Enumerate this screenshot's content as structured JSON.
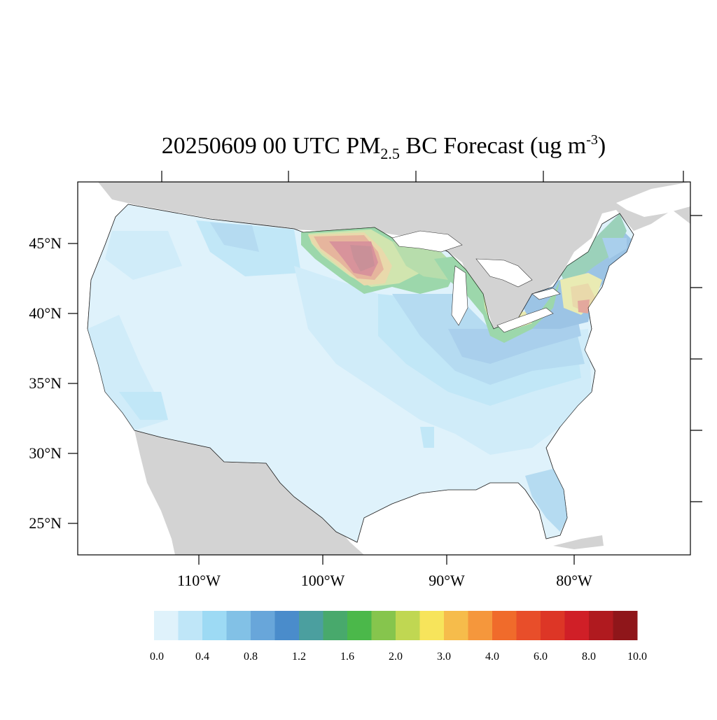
{
  "title": {
    "prefix": "20250609 00 UTC PM",
    "sub": "2.5",
    "middle": " BC Forecast (ug m",
    "sup": "-3",
    "suffix": ")"
  },
  "axes": {
    "lat_labels": [
      "45°N",
      "40°N",
      "35°N",
      "30°N",
      "25°N"
    ],
    "lon_labels": [
      "110°W",
      "100°W",
      "90°W",
      "80°W"
    ]
  },
  "colorbar": {
    "colors": [
      "#dff2fb",
      "#bfe6f8",
      "#9ddaf4",
      "#82c1e6",
      "#68a6da",
      "#4a8ccb",
      "#4b9f9f",
      "#48a96c",
      "#4bb84a",
      "#86c54d",
      "#c0d752",
      "#f7e45b",
      "#f6bc4b",
      "#f5973c",
      "#f06b2b",
      "#e84e2a",
      "#dd3626",
      "#d01f27",
      "#b01a1f",
      "#8f161a"
    ],
    "labels": [
      "0.0",
      "0.4",
      "0.8",
      "1.2",
      "1.6",
      "2.0",
      "3.0",
      "4.0",
      "6.0",
      "8.0",
      "10.0"
    ]
  },
  "map": {
    "land_color": "#d3d3d3",
    "water_color": "#ffffff",
    "low_color": "#dff2fb"
  }
}
